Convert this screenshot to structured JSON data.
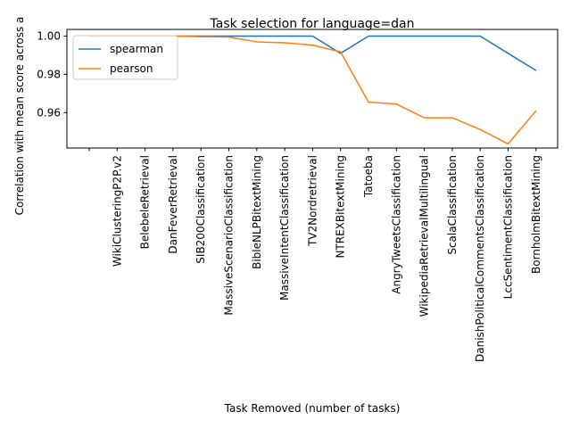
{
  "chart_data": {
    "type": "line",
    "title": "Task selection for language=dan",
    "xlabel": "Task Removed (number of tasks)",
    "ylabel": "Correlation with mean score across a",
    "categories": [
      "",
      "WikiClusteringP2P.v2",
      "BelebeleRetrieval",
      "DanFeverRetrieval",
      "SIB200Classification",
      "MassiveScenarioClassification",
      "BibleNLPBitextMining",
      "MassiveIntentClassification",
      "TV2Nordretrieval",
      "NTREXBitextMining",
      "Tatoeba",
      "AngryTweetsClassification",
      "WikipediaRetrievalMultilingual",
      "ScalaClassification",
      "DanishPoliticalCommentsClassification",
      "LccSentimentClassification",
      "BornholmBitextMining"
    ],
    "ylim": [
      0.9415,
      1.0035
    ],
    "yticks": [
      0.96,
      0.98,
      1.0
    ],
    "ytick_labels": [
      "0.96",
      "0.98",
      "1.00"
    ],
    "grid": false,
    "legend_position": "top-left",
    "series": [
      {
        "name": "spearman",
        "color": "#1f77b4",
        "values": [
          1.0,
          1.0,
          1.0,
          1.0,
          1.0,
          1.0,
          1.0,
          1.0,
          1.0,
          0.991,
          1.0,
          1.0,
          1.0,
          1.0,
          1.0,
          0.991,
          0.982
        ]
      },
      {
        "name": "pearson",
        "color": "#ff7f0e",
        "values": [
          1.0,
          1.0,
          1.0,
          1.0,
          0.9997,
          0.9995,
          0.997,
          0.9965,
          0.9953,
          0.9918,
          0.9655,
          0.9645,
          0.9573,
          0.9573,
          0.9512,
          0.9437,
          0.961
        ]
      }
    ]
  }
}
